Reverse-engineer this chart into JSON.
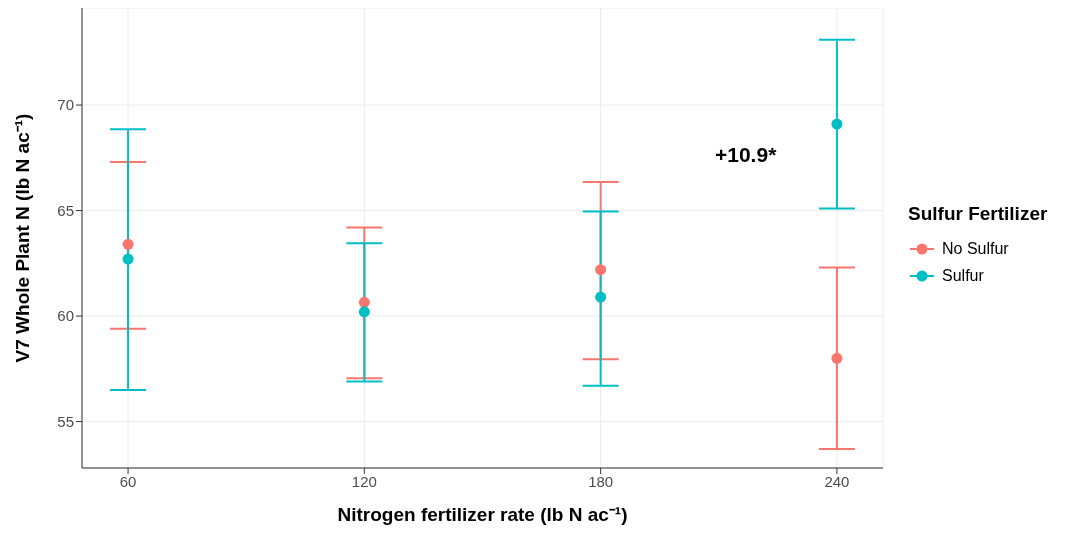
{
  "chart_data": {
    "type": "scatter",
    "xlabel": "Nitrogen fertilizer rate (lb N ac⁻¹)",
    "ylabel": "V7 Whole Plant N (lb N ac⁻¹)",
    "legend_title": "Sulfur Fertilizer",
    "x": [
      60,
      120,
      180,
      240
    ],
    "xlim": [
      48.3,
      251.7
    ],
    "xticks": [
      60,
      120,
      180,
      240
    ],
    "ylim": [
      52.8,
      74.6
    ],
    "yticks": [
      55,
      60,
      65,
      70
    ],
    "series": [
      {
        "name": "No Sulfur",
        "color": "#f8766d",
        "values": [
          63.4,
          60.65,
          62.2,
          58.0
        ],
        "errors": [
          [
            59.4,
            67.3
          ],
          [
            57.05,
            64.2
          ],
          [
            57.95,
            66.35
          ],
          [
            53.7,
            62.3
          ]
        ]
      },
      {
        "name": "Sulfur",
        "color": "#00bfc4",
        "values": [
          62.7,
          60.2,
          60.9,
          69.1
        ],
        "errors": [
          [
            56.5,
            68.85
          ],
          [
            56.9,
            63.45
          ],
          [
            56.7,
            64.95
          ],
          [
            65.1,
            73.1
          ]
        ]
      }
    ],
    "annotations": [
      "+10.9*"
    ],
    "grid": true,
    "legend": "right",
    "marker": "circle"
  }
}
